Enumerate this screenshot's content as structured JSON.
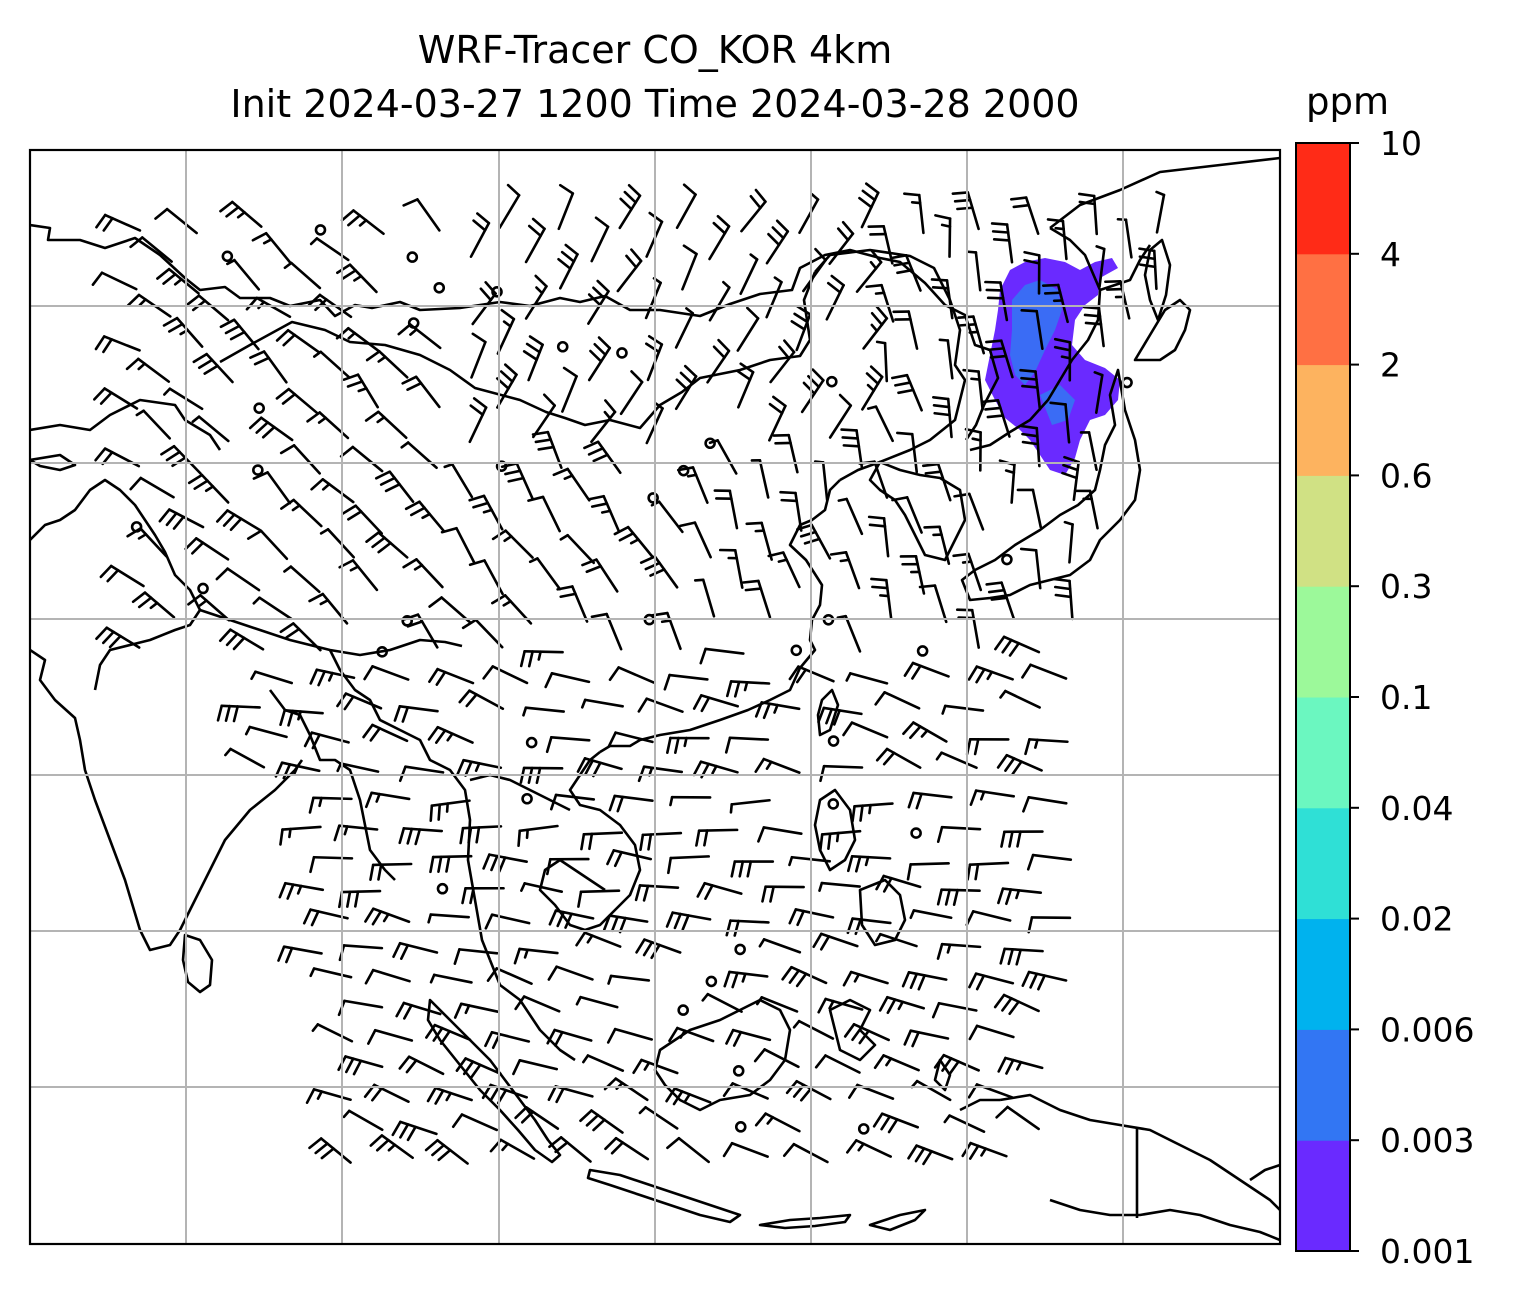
{
  "title": {
    "line1": "WRF-Tracer CO_KOR 4km",
    "line2": "Init 2024-03-27 1200 Time 2024-03-28 2000"
  },
  "colorbar": {
    "unit": "ppm",
    "levels": [
      "0.001",
      "0.003",
      "0.006",
      "0.02",
      "0.04",
      "0.1",
      "0.3",
      "0.6",
      "2",
      "4",
      "10"
    ],
    "colors": [
      "#6a2aff",
      "#3276f3",
      "#00b2ee",
      "#2fe0d6",
      "#6bf7c0",
      "#9cf99a",
      "#d0e184",
      "#fdb35f",
      "#ff7043",
      "#ff2b17"
    ]
  },
  "map": {
    "plume_colors": [
      "#6a2aff",
      "#3a6cf5"
    ],
    "gridlines": "on"
  }
}
